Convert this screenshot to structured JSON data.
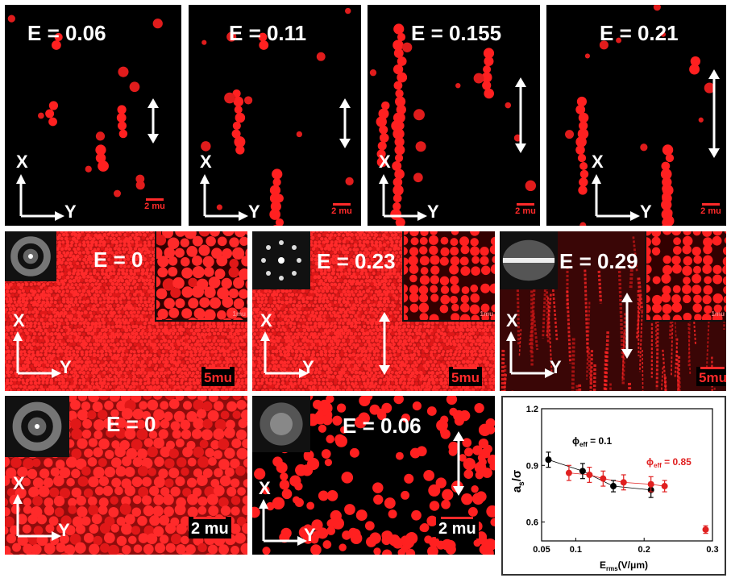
{
  "row1": {
    "panels": [
      {
        "label": "E = 0.06",
        "scale": "2 mu"
      },
      {
        "label": "E = 0.11",
        "scale": "2 mu"
      },
      {
        "label": "E = 0.155",
        "scale": "2 mu"
      },
      {
        "label": "E = 0.21",
        "scale": "2 mu"
      }
    ]
  },
  "row2": {
    "panels": [
      {
        "label": "E = 0",
        "scale": "5mu",
        "inset_scale": "1mu"
      },
      {
        "label": "E = 0.23",
        "scale": "5mu",
        "inset_scale": "1mu"
      },
      {
        "label": "E = 0.29",
        "scale": "5mu",
        "inset_scale": "1mu"
      }
    ]
  },
  "row3": {
    "panels": [
      {
        "label": "E = 0",
        "scale": "2 mu"
      },
      {
        "label": "E = 0.06",
        "scale": "2 mu"
      }
    ]
  },
  "axes": {
    "x": "X",
    "y": "Y"
  },
  "plot": {
    "ylabel_main": "a",
    "ylabel_sub": "s",
    "ylabel_tail": "/σ",
    "xlabel_main": "E",
    "xlabel_sub": "rms",
    "xlabel_tail": "(V/μm)",
    "legend1_main": "ϕ",
    "legend1_sub": "eff",
    "legend1_tail": " = 0.1",
    "legend2_main": "ϕ",
    "legend2_sub": "eff",
    "legend2_tail": " = 0.85",
    "xticks": [
      "0.05",
      "0.1",
      "0.2",
      "0.3"
    ],
    "yticks": [
      "0.6",
      "0.9",
      "1.2"
    ]
  },
  "chart_data": {
    "type": "scatter",
    "xlabel": "E_rms (V/μm)",
    "ylabel": "a_s/σ",
    "xlim": [
      0.05,
      0.3
    ],
    "ylim": [
      0.5,
      1.2
    ],
    "series": [
      {
        "name": "ϕ_eff = 0.1",
        "color": "#000000",
        "x": [
          0.06,
          0.11,
          0.155,
          0.21
        ],
        "y": [
          0.93,
          0.87,
          0.79,
          0.77
        ],
        "err": [
          0.04,
          0.04,
          0.03,
          0.04
        ]
      },
      {
        "name": "ϕ_eff = 0.85",
        "color": "#e02020",
        "x": [
          0.09,
          0.12,
          0.14,
          0.17,
          0.21,
          0.23,
          0.29
        ],
        "y": [
          0.86,
          0.85,
          0.83,
          0.81,
          0.8,
          0.79,
          0.56
        ],
        "err": [
          0.04,
          0.04,
          0.04,
          0.04,
          0.04,
          0.03,
          0.02
        ]
      }
    ]
  }
}
